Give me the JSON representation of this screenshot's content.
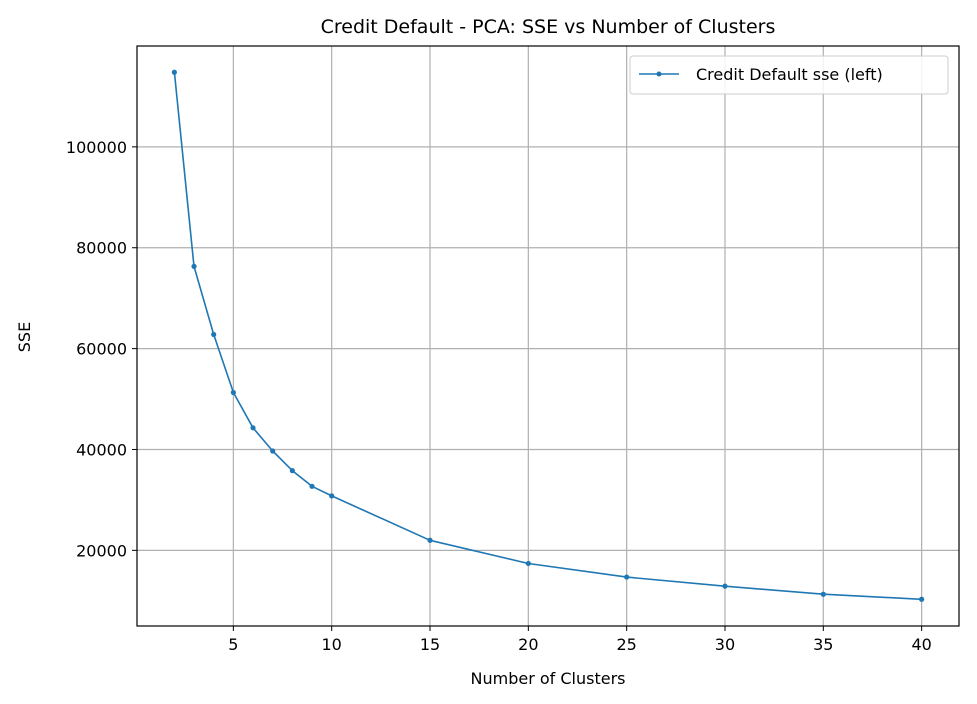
{
  "chart_data": {
    "type": "line",
    "title": "Credit Default - PCA: SSE vs Number of Clusters",
    "xlabel": "Number of Clusters",
    "ylabel": "SSE",
    "xlim": [
      0.1,
      41.9
    ],
    "ylim": [
      5000,
      120000
    ],
    "xticks": [
      5,
      10,
      15,
      20,
      25,
      30,
      35,
      40
    ],
    "yticks": [
      20000,
      40000,
      60000,
      80000,
      100000
    ],
    "grid": true,
    "legend_position": "top-right",
    "series": [
      {
        "name": "Credit Default sse (left)",
        "color": "#1f77b4",
        "marker": "point",
        "x": [
          2,
          3,
          4,
          5,
          6,
          7,
          8,
          9,
          10,
          15,
          20,
          25,
          30,
          35,
          40
        ],
        "y": [
          114800,
          76300,
          62800,
          51300,
          44300,
          39700,
          35800,
          32700,
          30800,
          22000,
          17400,
          14700,
          12900,
          11300,
          10300
        ]
      }
    ]
  }
}
